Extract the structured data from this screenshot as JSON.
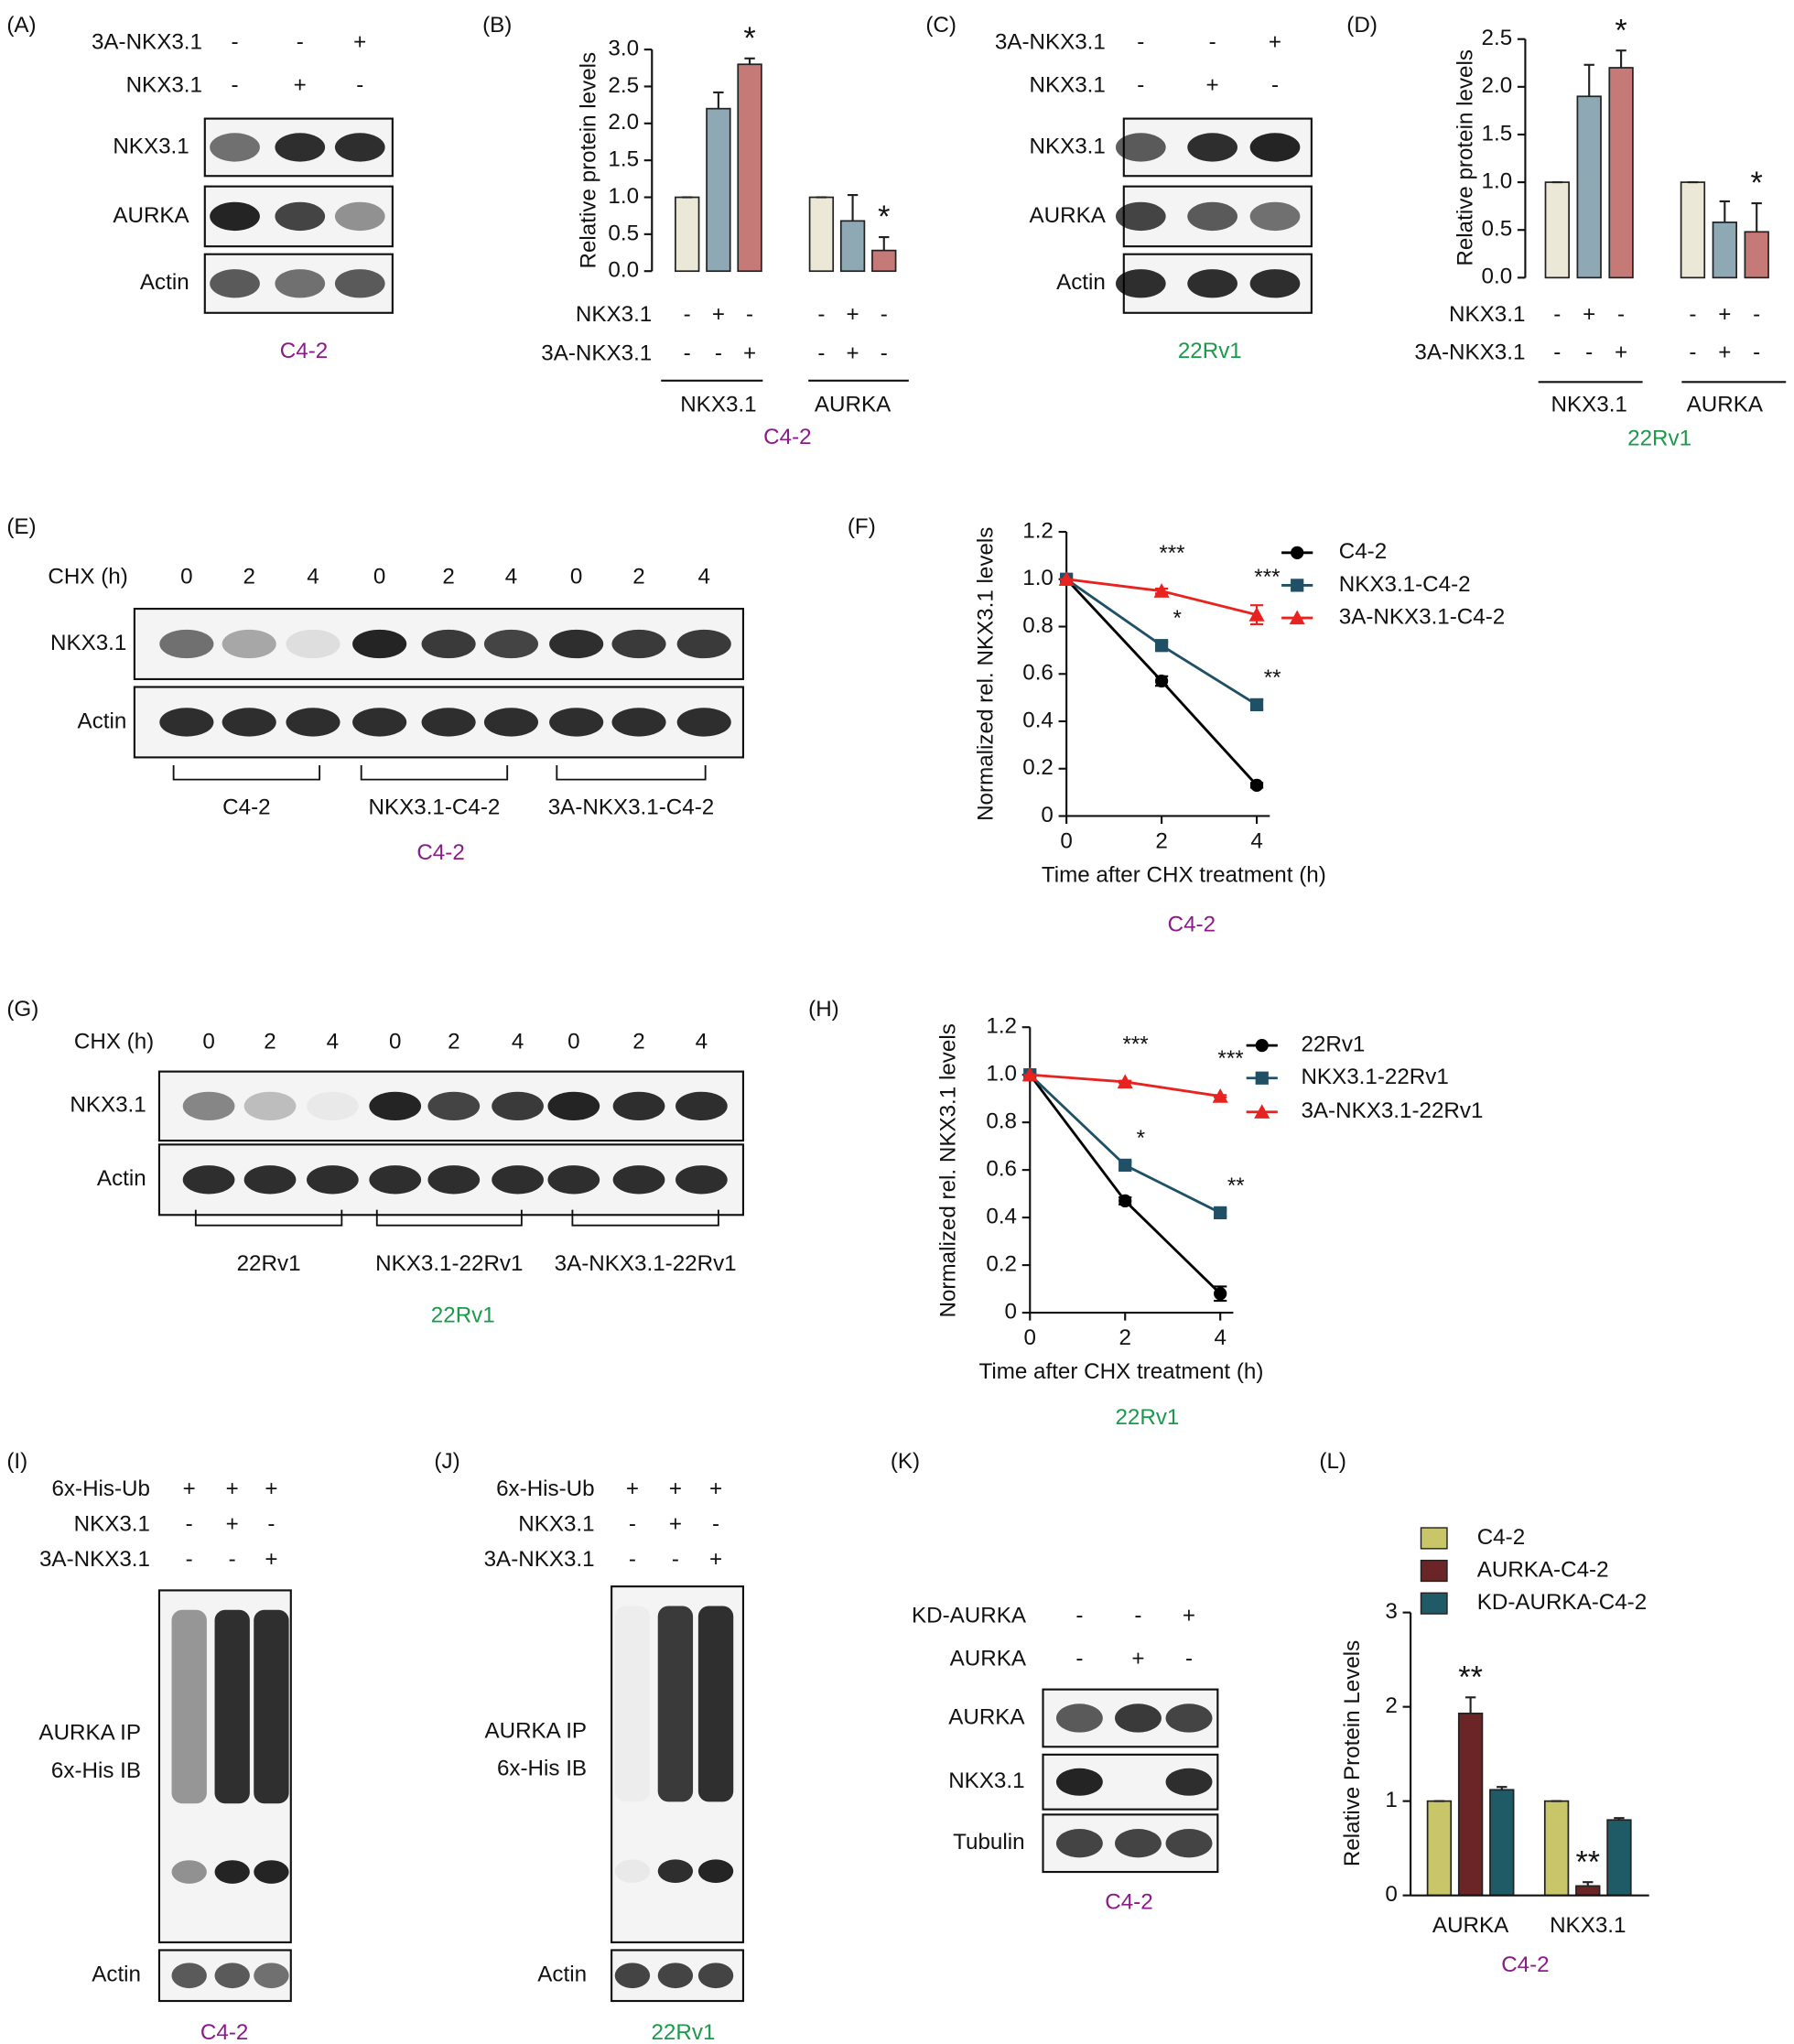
{
  "chart_data": [
    {
      "type": "bar",
      "panel": "(B)",
      "ylabel": "Relative protein levels",
      "categories": [
        "NKX3.1",
        "AURKA"
      ],
      "series": [
        {
          "color": "#ece8d8",
          "values": [
            1,
            1
          ],
          "errors": [
            0,
            0
          ]
        },
        {
          "color": "#8ea8b4",
          "values": [
            2.2,
            0.68
          ],
          "errors": [
            0.22,
            0.35
          ]
        },
        {
          "color": "#c67a78",
          "values": [
            2.8,
            0.28
          ],
          "errors": [
            0.08,
            0.18
          ],
          "significance": [
            "*",
            "*"
          ]
        }
      ],
      "ylim": [
        0,
        3.0
      ],
      "yticks": [
        {
          "value": 0,
          "label": "0.0"
        },
        0.5,
        {
          "value": 1,
          "label": "1.0"
        },
        1.5,
        {
          "value": 2,
          "label": "2.0"
        },
        2.5,
        {
          "value": 3,
          "label": "3.0"
        }
      ],
      "conditions": [
        {
          "label": "NKX3.1",
          "signs": [
            "-",
            "+",
            "-",
            "-",
            "+",
            "-"
          ]
        },
        {
          "label": "3A-NKX3.1",
          "signs": [
            "-",
            "-",
            "+",
            "-",
            "+",
            "-"
          ]
        }
      ],
      "caption": "C4-2",
      "caption_color": "#8b1a8b",
      "grid": false
    },
    {
      "type": "bar",
      "panel": "(D)",
      "ylabel": "Relative protein levels",
      "categories": [
        "NKX3.1",
        "AURKA"
      ],
      "series": [
        {
          "color": "#ece8d8",
          "values": [
            1,
            1
          ],
          "errors": [
            0,
            0
          ]
        },
        {
          "color": "#8ea8b4",
          "values": [
            1.9,
            0.58
          ],
          "errors": [
            0.33,
            0.22
          ]
        },
        {
          "color": "#c67a78",
          "values": [
            2.2,
            0.48
          ],
          "errors": [
            0.18,
            0.3
          ],
          "significance": [
            "*",
            "*"
          ]
        }
      ],
      "ylim": [
        0,
        2.5
      ],
      "yticks": [
        {
          "value": 0,
          "label": "0.0"
        },
        0.5,
        {
          "value": 1,
          "label": "1.0"
        },
        1.5,
        {
          "value": 2,
          "label": "2.0"
        },
        2.5
      ],
      "conditions": [
        {
          "label": "NKX3.1",
          "signs": [
            "-",
            "+",
            "-",
            "-",
            "+",
            "-"
          ]
        },
        {
          "label": "3A-NKX3.1",
          "signs": [
            "-",
            "-",
            "+",
            "-",
            "+",
            "-"
          ]
        }
      ],
      "caption": "22Rv1",
      "caption_color": "#1a9a4a",
      "grid": false
    },
    {
      "type": "line",
      "panel": "(F)",
      "ylabel": "Normalized rel. NKX3.1 levels",
      "xlabel": "Time after CHX treatment (h)",
      "x": [
        0,
        2,
        4
      ],
      "series": [
        {
          "name": "C4-2",
          "color": "#000000",
          "marker": "circle",
          "values": [
            1,
            0.57,
            0.13
          ],
          "errors": [
            0,
            0.02,
            0.01
          ]
        },
        {
          "name": "NKX3.1-C4-2",
          "color": "#1f5066",
          "marker": "square",
          "values": [
            1,
            0.72,
            0.47
          ],
          "errors": [
            0,
            0.015,
            0.02
          ],
          "significance": [
            null,
            "*",
            "**"
          ]
        },
        {
          "name": "3A-NKX3.1-C4-2",
          "color": "#e8231f",
          "marker": "triangle",
          "values": [
            1,
            0.95,
            0.85
          ],
          "errors": [
            0,
            0.01,
            0.04
          ],
          "significance": [
            null,
            "***",
            "***"
          ]
        }
      ],
      "xlim": [
        0,
        4
      ],
      "xticks": [
        0,
        2,
        4
      ],
      "ylim": [
        0,
        1.2
      ],
      "yticks": [
        0,
        0.2,
        0.4,
        0.6,
        0.8,
        {
          "value": 1,
          "label": "1.0"
        },
        1.2
      ],
      "legend": "top-right",
      "caption": "C4-2",
      "caption_color": "#8b1a8b",
      "grid": false
    },
    {
      "type": "line",
      "panel": "(H)",
      "ylabel": "Normalized rel. NKX3.1 levels",
      "xlabel": "Time after CHX treatment (h)",
      "x": [
        0,
        2,
        4
      ],
      "series": [
        {
          "name": "22Rv1",
          "color": "#000000",
          "marker": "circle",
          "values": [
            1,
            0.47,
            0.08
          ],
          "errors": [
            0,
            0.015,
            0.03
          ]
        },
        {
          "name": "NKX3.1-22Rv1",
          "color": "#1f5066",
          "marker": "square",
          "values": [
            1,
            0.62,
            0.42
          ],
          "errors": [
            0,
            0.015,
            0.015
          ],
          "significance": [
            null,
            "*",
            "**"
          ]
        },
        {
          "name": "3A-NKX3.1-22Rv1",
          "color": "#e8231f",
          "marker": "triangle",
          "values": [
            1,
            0.97,
            0.91
          ],
          "errors": [
            0,
            0.005,
            0.005
          ],
          "significance": [
            null,
            "***",
            "***"
          ]
        }
      ],
      "xlim": [
        0,
        4
      ],
      "xticks": [
        0,
        2,
        4
      ],
      "ylim": [
        0,
        1.2
      ],
      "yticks": [
        0,
        0.2,
        0.4,
        0.6,
        0.8,
        {
          "value": 1,
          "label": "1.0"
        },
        1.2
      ],
      "legend": "top-right",
      "caption": "22Rv1",
      "caption_color": "#1a9a4a",
      "grid": false
    },
    {
      "type": "bar",
      "panel": "(L)",
      "ylabel": "Relative Protein Levels",
      "categories": [
        "AURKA",
        "NKX3.1"
      ],
      "series": [
        {
          "name": "C4-2",
          "color": "#c9c66a",
          "values": [
            1,
            1
          ],
          "errors": [
            0,
            0
          ]
        },
        {
          "name": "AURKA-C4-2",
          "color": "#6b2526",
          "values": [
            1.93,
            0.1
          ],
          "errors": [
            0.17,
            0.04
          ],
          "significance": [
            "**",
            "**"
          ]
        },
        {
          "name": "KD-AURKA-C4-2",
          "color": "#1e5b66",
          "values": [
            1.12,
            0.8
          ],
          "errors": [
            0.03,
            0.02
          ]
        }
      ],
      "ylim": [
        0,
        3
      ],
      "yticks": [
        0,
        1,
        2,
        3
      ],
      "legend": "top-left",
      "caption": "C4-2",
      "caption_color": "#8b1a8b",
      "grid": false
    }
  ],
  "blots": [
    {
      "panel": "(A)",
      "conditions": [
        {
          "label": "3A-NKX3.1",
          "signs": [
            "-",
            "-",
            "+"
          ]
        },
        {
          "label": "NKX3.1",
          "signs": [
            "-",
            "+",
            "-"
          ]
        }
      ],
      "bands": [
        "NKX3.1",
        "AURKA",
        "Actin"
      ],
      "caption": "C4-2",
      "caption_color": "#8b1a8b"
    },
    {
      "panel": "(C)",
      "conditions": [
        {
          "label": "3A-NKX3.1",
          "signs": [
            "-",
            "-",
            "+"
          ]
        },
        {
          "label": "NKX3.1",
          "signs": [
            "-",
            "+",
            "-"
          ]
        }
      ],
      "bands": [
        "NKX3.1",
        "AURKA",
        "Actin"
      ],
      "caption": "22Rv1",
      "caption_color": "#1a9a4a"
    },
    {
      "panel": "(E)",
      "conditions": [
        {
          "label": "CHX (h)",
          "signs": [
            0,
            2,
            4,
            0,
            2,
            4,
            0,
            2,
            4
          ]
        }
      ],
      "bands": [
        "NKX3.1",
        "Actin"
      ],
      "groups": [
        "C4-2",
        "NKX3.1-C4-2",
        "3A-NKX3.1-C4-2"
      ],
      "caption": "C4-2",
      "caption_color": "#8b1a8b"
    },
    {
      "panel": "(G)",
      "conditions": [
        {
          "label": "CHX (h)",
          "signs": [
            0,
            2,
            4,
            0,
            2,
            4,
            0,
            2,
            4
          ]
        }
      ],
      "bands": [
        "NKX3.1",
        "Actin"
      ],
      "groups": [
        "22Rv1",
        "NKX3.1-22Rv1",
        "3A-NKX3.1-22Rv1"
      ],
      "caption": "22Rv1",
      "caption_color": "#1a9a4a"
    },
    {
      "panel": "(I)",
      "conditions": [
        {
          "label": "6x-His-Ub",
          "signs": [
            "+",
            "+",
            "+"
          ]
        },
        {
          "label": "NKX3.1",
          "signs": [
            "-",
            "+",
            "-"
          ]
        },
        {
          "label": "3A-NKX3.1",
          "signs": [
            "-",
            "-",
            "+"
          ]
        }
      ],
      "bands": [
        [
          "AURKA IP",
          "6x-His IB"
        ],
        "Actin"
      ],
      "caption": "C4-2",
      "caption_color": "#8b1a8b"
    },
    {
      "panel": "(J)",
      "conditions": [
        {
          "label": "6x-His-Ub",
          "signs": [
            "+",
            "+",
            "+"
          ]
        },
        {
          "label": "NKX3.1",
          "signs": [
            "-",
            "+",
            "-"
          ]
        },
        {
          "label": "3A-NKX3.1",
          "signs": [
            "-",
            "-",
            "+"
          ]
        }
      ],
      "bands": [
        [
          "AURKA IP",
          "6x-His IB"
        ],
        "Actin"
      ],
      "caption": "22Rv1",
      "caption_color": "#1a9a4a"
    },
    {
      "panel": "(K)",
      "conditions": [
        {
          "label": "KD-AURKA",
          "signs": [
            "-",
            "-",
            "+"
          ]
        },
        {
          "label": "AURKA",
          "signs": [
            "-",
            "+",
            "-"
          ]
        }
      ],
      "bands": [
        "AURKA",
        "NKX3.1",
        "Tubulin"
      ],
      "caption": "C4-2",
      "caption_color": "#8b1a8b"
    }
  ]
}
